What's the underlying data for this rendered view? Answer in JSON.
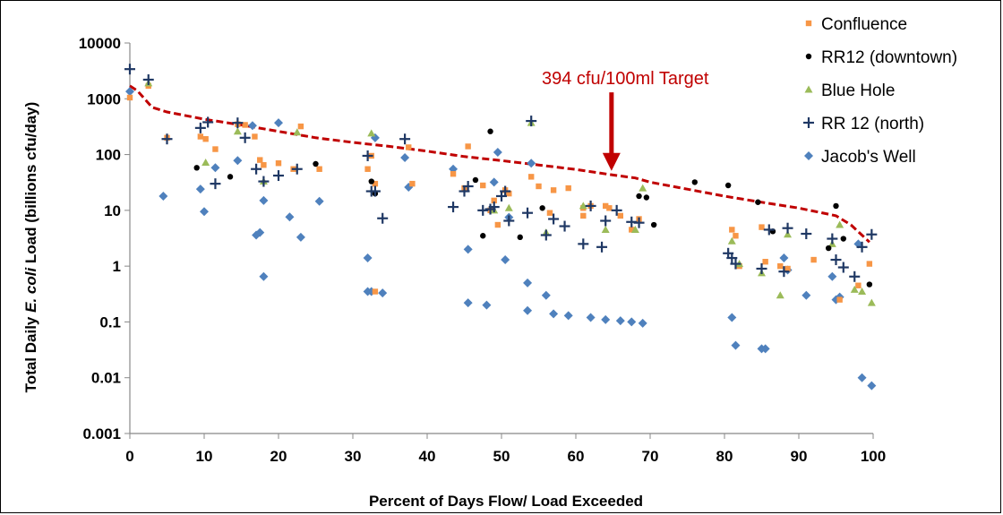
{
  "chart_data": {
    "type": "scatter",
    "title": "",
    "xlabel": "Percent of Days Flow/ Load Exceeded",
    "ylabel_parts": [
      "Total Daily ",
      "E. coli",
      " Load (billions cfu/day)"
    ],
    "xlim": [
      0,
      100
    ],
    "ylim": [
      0.001,
      10000
    ],
    "y_scale": "log",
    "x_ticks": [
      0,
      10,
      20,
      30,
      40,
      50,
      60,
      70,
      80,
      90,
      100
    ],
    "y_ticks": [
      {
        "value": 0.001,
        "label": "0.001"
      },
      {
        "value": 0.01,
        "label": "0.01"
      },
      {
        "value": 0.1,
        "label": "0.1"
      },
      {
        "value": 1,
        "label": "1"
      },
      {
        "value": 10,
        "label": "10"
      },
      {
        "value": 100,
        "label": "100"
      },
      {
        "value": 1000,
        "label": "1000"
      },
      {
        "value": 10000,
        "label": "10000"
      }
    ],
    "grid": false,
    "legend_position": "top-right",
    "target_line": {
      "name": "394 cfu/100ml Target",
      "color": "#c00000",
      "points": [
        [
          0,
          1700
        ],
        [
          1,
          1400
        ],
        [
          3,
          700
        ],
        [
          5,
          580
        ],
        [
          10,
          430
        ],
        [
          15,
          340
        ],
        [
          20,
          260
        ],
        [
          25,
          200
        ],
        [
          30,
          165
        ],
        [
          35,
          140
        ],
        [
          40,
          115
        ],
        [
          45,
          92
        ],
        [
          50,
          78
        ],
        [
          55,
          65
        ],
        [
          60,
          54
        ],
        [
          65,
          43
        ],
        [
          68,
          38
        ],
        [
          70,
          32
        ],
        [
          75,
          24
        ],
        [
          80,
          18
        ],
        [
          85,
          14
        ],
        [
          90,
          11
        ],
        [
          95,
          8
        ],
        [
          97,
          5.5
        ],
        [
          99.5,
          2.7
        ]
      ]
    },
    "annotation": {
      "text": "394 cfu/100ml Target",
      "arrow_x": 64.8,
      "arrow_from_y": 900,
      "arrow_to_y": 55
    },
    "series": [
      {
        "name": "Confluence",
        "marker": "square",
        "color": "#f79646",
        "points": [
          [
            0,
            1050
          ],
          [
            2.5,
            1700
          ],
          [
            5,
            200
          ],
          [
            9.5,
            210
          ],
          [
            10.2,
            190
          ],
          [
            11.5,
            125
          ],
          [
            14.5,
            350
          ],
          [
            15.5,
            340
          ],
          [
            16.8,
            210
          ],
          [
            17.5,
            80
          ],
          [
            18,
            65
          ],
          [
            20,
            70
          ],
          [
            22,
            55
          ],
          [
            23,
            320
          ],
          [
            25.5,
            55
          ],
          [
            32,
            55
          ],
          [
            32.5,
            95
          ],
          [
            33,
            30
          ],
          [
            33,
            0.35
          ],
          [
            37.5,
            135
          ],
          [
            38,
            30
          ],
          [
            43.5,
            45
          ],
          [
            45,
            25
          ],
          [
            45.5,
            140
          ],
          [
            47.5,
            28
          ],
          [
            48.5,
            10
          ],
          [
            49,
            15
          ],
          [
            49.5,
            5.5
          ],
          [
            50.5,
            23
          ],
          [
            51,
            20
          ],
          [
            54,
            40
          ],
          [
            55,
            27
          ],
          [
            56.5,
            9
          ],
          [
            57,
            23
          ],
          [
            59,
            25
          ],
          [
            61,
            8
          ],
          [
            61,
            11
          ],
          [
            62,
            12
          ],
          [
            64,
            12
          ],
          [
            64.5,
            11
          ],
          [
            66,
            8
          ],
          [
            67.5,
            4.5
          ],
          [
            68.5,
            7
          ],
          [
            81,
            4.5
          ],
          [
            81.5,
            3.5
          ],
          [
            82,
            1
          ],
          [
            85,
            5
          ],
          [
            85.5,
            1.2
          ],
          [
            87.5,
            1
          ],
          [
            88.5,
            0.9
          ],
          [
            92,
            1.3
          ],
          [
            95.5,
            0.25
          ],
          [
            98,
            0.45
          ],
          [
            99.5,
            1.1
          ]
        ]
      },
      {
        "name": "RR12 (downtown)",
        "marker": "circle",
        "color": "#000000",
        "points": [
          [
            9,
            58
          ],
          [
            13.5,
            40
          ],
          [
            25,
            68
          ],
          [
            32.5,
            33
          ],
          [
            33,
            20
          ],
          [
            46.5,
            35
          ],
          [
            47.5,
            3.5
          ],
          [
            48.5,
            260
          ],
          [
            52.5,
            3.3
          ],
          [
            55.5,
            11
          ],
          [
            68.5,
            18
          ],
          [
            69.5,
            17
          ],
          [
            70.5,
            5.5
          ],
          [
            76,
            32
          ],
          [
            80.5,
            28
          ],
          [
            84.5,
            14
          ],
          [
            86.5,
            4.2
          ],
          [
            94,
            2.1
          ],
          [
            95,
            12
          ],
          [
            96,
            3.1
          ],
          [
            99.5,
            0.47
          ]
        ]
      },
      {
        "name": "Blue Hole",
        "marker": "triangle",
        "color": "#9bbb59",
        "points": [
          [
            2.5,
            1900
          ],
          [
            10.2,
            72
          ],
          [
            14.5,
            260
          ],
          [
            18,
            33
          ],
          [
            22.5,
            250
          ],
          [
            32.5,
            240
          ],
          [
            49,
            10
          ],
          [
            51,
            11
          ],
          [
            54,
            370
          ],
          [
            56,
            4
          ],
          [
            61,
            12
          ],
          [
            64,
            4.5
          ],
          [
            68,
            4.5
          ],
          [
            69,
            25
          ],
          [
            81,
            2.8
          ],
          [
            82,
            1.1
          ],
          [
            85,
            0.75
          ],
          [
            87.5,
            0.3
          ],
          [
            88.5,
            3.7
          ],
          [
            94.5,
            2.5
          ],
          [
            95.5,
            5.5
          ],
          [
            97.5,
            0.38
          ],
          [
            98.5,
            0.35
          ],
          [
            99.8,
            0.22
          ]
        ]
      },
      {
        "name": "RR 12 (north)",
        "marker": "plus",
        "color": "#1f3864",
        "points": [
          [
            0,
            3400
          ],
          [
            2.5,
            2200
          ],
          [
            5,
            190
          ],
          [
            9.5,
            300
          ],
          [
            10.5,
            380
          ],
          [
            11.5,
            30
          ],
          [
            14.5,
            370
          ],
          [
            15.5,
            200
          ],
          [
            17,
            55
          ],
          [
            18,
            33
          ],
          [
            20,
            42
          ],
          [
            22.5,
            55
          ],
          [
            32,
            95
          ],
          [
            32.5,
            22
          ],
          [
            33,
            22
          ],
          [
            34,
            7.2
          ],
          [
            37,
            190
          ],
          [
            43.5,
            11.5
          ],
          [
            45,
            22
          ],
          [
            45.5,
            27
          ],
          [
            47.5,
            10
          ],
          [
            48.5,
            10.5
          ],
          [
            49,
            11.5
          ],
          [
            50,
            18
          ],
          [
            50.5,
            22
          ],
          [
            51,
            6.5
          ],
          [
            53.5,
            9
          ],
          [
            54,
            400
          ],
          [
            56,
            3.6
          ],
          [
            57,
            7
          ],
          [
            58.5,
            5.2
          ],
          [
            61,
            2.5
          ],
          [
            62,
            12
          ],
          [
            63.5,
            2.2
          ],
          [
            64,
            6.5
          ],
          [
            65.5,
            10
          ],
          [
            67.5,
            6.2
          ],
          [
            68.5,
            6
          ],
          [
            80.5,
            1.7
          ],
          [
            81,
            1.4
          ],
          [
            81.5,
            1.1
          ],
          [
            85,
            0.9
          ],
          [
            86,
            4.5
          ],
          [
            88,
            0.8
          ],
          [
            88.5,
            4.8
          ],
          [
            91,
            3.8
          ],
          [
            94.5,
            3.1
          ],
          [
            95,
            1.3
          ],
          [
            96,
            0.95
          ],
          [
            97.5,
            0.65
          ],
          [
            98.5,
            2.2
          ],
          [
            99.8,
            3.7
          ]
        ]
      },
      {
        "name": "Jacob's Well",
        "marker": "diamond",
        "color": "#4f81bd",
        "points": [
          [
            0,
            1350
          ],
          [
            4.5,
            18
          ],
          [
            9.5,
            24
          ],
          [
            10,
            9.5
          ],
          [
            11.5,
            58
          ],
          [
            14.5,
            78
          ],
          [
            16.5,
            330
          ],
          [
            17,
            3.6
          ],
          [
            17.5,
            4
          ],
          [
            18,
            15
          ],
          [
            18,
            0.65
          ],
          [
            20,
            370
          ],
          [
            21.5,
            7.6
          ],
          [
            23,
            3.3
          ],
          [
            25.5,
            14.5
          ],
          [
            32,
            1.4
          ],
          [
            32,
            0.35
          ],
          [
            32.5,
            0.35
          ],
          [
            33,
            200
          ],
          [
            34,
            0.33
          ],
          [
            37,
            88
          ],
          [
            37.5,
            26
          ],
          [
            43.5,
            55
          ],
          [
            45.5,
            0.22
          ],
          [
            45.5,
            2
          ],
          [
            48,
            0.2
          ],
          [
            49.5,
            110
          ],
          [
            49,
            32
          ],
          [
            50.5,
            1.3
          ],
          [
            51,
            7.5
          ],
          [
            53.5,
            0.5
          ],
          [
            53.5,
            0.16
          ],
          [
            54,
            70
          ],
          [
            56,
            0.3
          ],
          [
            57,
            0.14
          ],
          [
            59,
            0.13
          ],
          [
            62,
            0.12
          ],
          [
            64,
            0.11
          ],
          [
            66,
            0.105
          ],
          [
            67.5,
            0.1
          ],
          [
            69,
            0.095
          ],
          [
            81,
            0.12
          ],
          [
            81.5,
            0.038
          ],
          [
            85,
            0.033
          ],
          [
            85.5,
            0.033
          ],
          [
            88,
            1.4
          ],
          [
            88.5,
            0.85
          ],
          [
            91,
            0.3
          ],
          [
            94.5,
            0.65
          ],
          [
            95,
            0.25
          ],
          [
            95.5,
            0.28
          ],
          [
            98,
            2.5
          ],
          [
            98.5,
            0.01
          ],
          [
            99.8,
            0.0072
          ]
        ]
      }
    ]
  }
}
